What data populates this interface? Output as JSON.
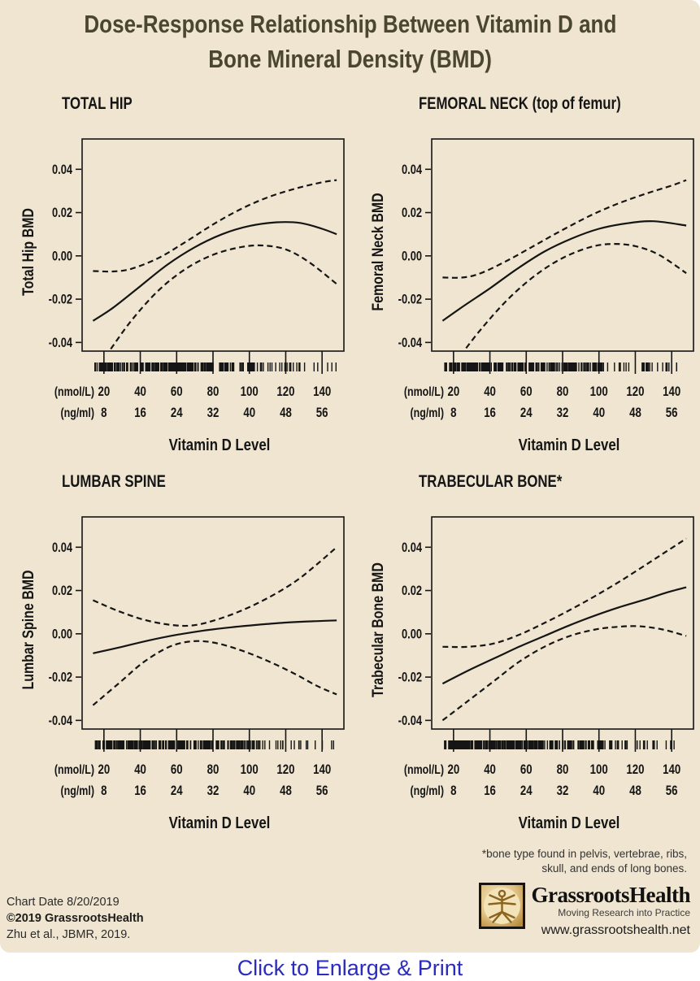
{
  "header": {
    "title_line1": "Dose-Response Relationship Between Vitamin D and",
    "title_line2": "Bone Mineral Density (BMD)"
  },
  "colors": {
    "card_bg": "#efe5d0",
    "title_text": "#4a4630",
    "chart_ink": "#151515",
    "link_blue": "#2b2bbd",
    "logo_gold_dark": "#b98c3c",
    "logo_gold_light": "#f3e3b8"
  },
  "chart_data": [
    {
      "type": "line",
      "title": "TOTAL HIP",
      "ylabel": "Total Hip BMD",
      "xlabel": "Vitamin D Level",
      "x_units": [
        "(nmol/L)",
        "(ng/ml)"
      ],
      "x_ticks_nmol": [
        20,
        40,
        60,
        80,
        100,
        120,
        140
      ],
      "x_ticks_ngml": [
        8,
        16,
        24,
        32,
        40,
        48,
        56
      ],
      "y_ticks": [
        "0.04",
        "0.02",
        "0.00",
        "-0.02",
        "-0.04"
      ],
      "xlim": [
        8,
        152
      ],
      "ylim": [
        -0.044,
        0.054
      ],
      "grid": false,
      "legend": "none",
      "rug": {
        "seed": 11,
        "n_dense": 240,
        "n_sparse": 26
      },
      "series": [
        {
          "name": "estimate",
          "style": "solid",
          "points": [
            [
              14,
              -0.03
            ],
            [
              25,
              -0.024
            ],
            [
              40,
              -0.014
            ],
            [
              55,
              -0.004
            ],
            [
              70,
              0.004
            ],
            [
              85,
              0.01
            ],
            [
              100,
              0.0138
            ],
            [
              115,
              0.0155
            ],
            [
              128,
              0.0152
            ],
            [
              140,
              0.0125
            ],
            [
              148,
              0.01
            ]
          ]
        },
        {
          "name": "upper-ci",
          "style": "dashed",
          "points": [
            [
              14,
              -0.007
            ],
            [
              25,
              -0.0072
            ],
            [
              35,
              -0.006
            ],
            [
              50,
              -0.001
            ],
            [
              65,
              0.0065
            ],
            [
              80,
              0.0145
            ],
            [
              95,
              0.0215
            ],
            [
              110,
              0.027
            ],
            [
              125,
              0.031
            ],
            [
              140,
              0.034
            ],
            [
              148,
              0.035
            ]
          ]
        },
        {
          "name": "lower-ci",
          "style": "dashed",
          "points": [
            [
              14,
              -0.053
            ],
            [
              22,
              -0.045
            ],
            [
              35,
              -0.03
            ],
            [
              50,
              -0.016
            ],
            [
              65,
              -0.006
            ],
            [
              80,
              0.0005
            ],
            [
              95,
              0.004
            ],
            [
              107,
              0.0048
            ],
            [
              120,
              0.003
            ],
            [
              133,
              -0.003
            ],
            [
              148,
              -0.013
            ]
          ]
        }
      ]
    },
    {
      "type": "line",
      "title": "FEMORAL NECK (top of femur)",
      "ylabel": "Femoral Neck BMD",
      "xlabel": "Vitamin D Level",
      "x_units": [
        "(nmol/L)",
        "(ng/ml)"
      ],
      "x_ticks_nmol": [
        20,
        40,
        60,
        80,
        100,
        120,
        140
      ],
      "x_ticks_ngml": [
        8,
        16,
        24,
        32,
        40,
        48,
        56
      ],
      "y_ticks": [
        "0.04",
        "0.02",
        "0.00",
        "-0.02",
        "-0.04"
      ],
      "xlim": [
        8,
        152
      ],
      "ylim": [
        -0.044,
        0.054
      ],
      "grid": false,
      "legend": "none",
      "rug": {
        "seed": 23,
        "n_dense": 240,
        "n_sparse": 26
      },
      "series": [
        {
          "name": "estimate",
          "style": "solid",
          "points": [
            [
              14,
              -0.03
            ],
            [
              25,
              -0.0235
            ],
            [
              40,
              -0.015
            ],
            [
              55,
              -0.006
            ],
            [
              70,
              0.002
            ],
            [
              85,
              0.008
            ],
            [
              100,
              0.0125
            ],
            [
              115,
              0.015
            ],
            [
              130,
              0.016
            ],
            [
              148,
              0.014
            ]
          ]
        },
        {
          "name": "upper-ci",
          "style": "dashed",
          "points": [
            [
              14,
              -0.01
            ],
            [
              25,
              -0.01
            ],
            [
              35,
              -0.008
            ],
            [
              50,
              -0.002
            ],
            [
              65,
              0.005
            ],
            [
              80,
              0.012
            ],
            [
              95,
              0.0185
            ],
            [
              110,
              0.024
            ],
            [
              125,
              0.0285
            ],
            [
              140,
              0.0325
            ],
            [
              148,
              0.035
            ]
          ]
        },
        {
          "name": "lower-ci",
          "style": "dashed",
          "points": [
            [
              14,
              -0.056
            ],
            [
              22,
              -0.048
            ],
            [
              35,
              -0.034
            ],
            [
              50,
              -0.02
            ],
            [
              65,
              -0.009
            ],
            [
              80,
              -0.001
            ],
            [
              95,
              0.004
            ],
            [
              107,
              0.0055
            ],
            [
              120,
              0.0045
            ],
            [
              133,
              0.0005
            ],
            [
              148,
              -0.008
            ]
          ]
        }
      ]
    },
    {
      "type": "line",
      "title": "LUMBAR SPINE",
      "ylabel": "Lumbar Spine BMD",
      "xlabel": "Vitamin D Level",
      "x_units": [
        "(nmol/L)",
        "(ng/ml)"
      ],
      "x_ticks_nmol": [
        20,
        40,
        60,
        80,
        100,
        120,
        140
      ],
      "x_ticks_ngml": [
        8,
        16,
        24,
        32,
        40,
        48,
        56
      ],
      "y_ticks": [
        "0.04",
        "0.02",
        "0.00",
        "-0.02",
        "-0.04"
      ],
      "xlim": [
        8,
        152
      ],
      "ylim": [
        -0.044,
        0.054
      ],
      "grid": false,
      "legend": "none",
      "rug": {
        "seed": 37,
        "n_dense": 240,
        "n_sparse": 26
      },
      "series": [
        {
          "name": "estimate",
          "style": "solid",
          "points": [
            [
              14,
              -0.009
            ],
            [
              30,
              -0.006
            ],
            [
              45,
              -0.003
            ],
            [
              60,
              -0.0005
            ],
            [
              75,
              0.0015
            ],
            [
              90,
              0.003
            ],
            [
              105,
              0.0042
            ],
            [
              120,
              0.0052
            ],
            [
              135,
              0.0058
            ],
            [
              148,
              0.0062
            ]
          ]
        },
        {
          "name": "upper-ci",
          "style": "dashed",
          "points": [
            [
              14,
              0.0155
            ],
            [
              28,
              0.0105
            ],
            [
              42,
              0.0065
            ],
            [
              56,
              0.0042
            ],
            [
              68,
              0.0038
            ],
            [
              80,
              0.006
            ],
            [
              95,
              0.0105
            ],
            [
              110,
              0.0165
            ],
            [
              125,
              0.024
            ],
            [
              137,
              0.032
            ],
            [
              148,
              0.04
            ]
          ]
        },
        {
          "name": "lower-ci",
          "style": "dashed",
          "points": [
            [
              14,
              -0.033
            ],
            [
              28,
              -0.023
            ],
            [
              42,
              -0.013
            ],
            [
              56,
              -0.006
            ],
            [
              68,
              -0.0035
            ],
            [
              80,
              -0.004
            ],
            [
              95,
              -0.0075
            ],
            [
              110,
              -0.0125
            ],
            [
              125,
              -0.0185
            ],
            [
              137,
              -0.024
            ],
            [
              148,
              -0.028
            ]
          ]
        }
      ]
    },
    {
      "type": "line",
      "title": "TRABECULAR BONE*",
      "ylabel": "Trabecular Bone BMD",
      "xlabel": "Vitamin D Level",
      "x_units": [
        "(nmol/L)",
        "(ng/ml)"
      ],
      "x_ticks_nmol": [
        20,
        40,
        60,
        80,
        100,
        120,
        140
      ],
      "x_ticks_ngml": [
        8,
        16,
        24,
        32,
        40,
        48,
        56
      ],
      "y_ticks": [
        "0.04",
        "0.02",
        "0.00",
        "-0.02",
        "-0.04"
      ],
      "xlim": [
        8,
        152
      ],
      "ylim": [
        -0.044,
        0.054
      ],
      "grid": false,
      "legend": "none",
      "rug": {
        "seed": 51,
        "n_dense": 240,
        "n_sparse": 26
      },
      "series": [
        {
          "name": "estimate",
          "style": "solid",
          "points": [
            [
              14,
              -0.023
            ],
            [
              28,
              -0.017
            ],
            [
              42,
              -0.0115
            ],
            [
              56,
              -0.006
            ],
            [
              70,
              -0.001
            ],
            [
              84,
              0.004
            ],
            [
              98,
              0.0085
            ],
            [
              112,
              0.0125
            ],
            [
              126,
              0.016
            ],
            [
              137,
              0.019
            ],
            [
              148,
              0.0215
            ]
          ]
        },
        {
          "name": "upper-ci",
          "style": "dashed",
          "points": [
            [
              14,
              -0.006
            ],
            [
              28,
              -0.006
            ],
            [
              42,
              -0.0045
            ],
            [
              56,
              -0.0005
            ],
            [
              70,
              0.005
            ],
            [
              84,
              0.011
            ],
            [
              98,
              0.0175
            ],
            [
              112,
              0.0245
            ],
            [
              126,
              0.032
            ],
            [
              137,
              0.038
            ],
            [
              148,
              0.044
            ]
          ]
        },
        {
          "name": "lower-ci",
          "style": "dashed",
          "points": [
            [
              14,
              -0.04
            ],
            [
              28,
              -0.031
            ],
            [
              42,
              -0.022
            ],
            [
              56,
              -0.013
            ],
            [
              70,
              -0.006
            ],
            [
              84,
              -0.001
            ],
            [
              98,
              0.002
            ],
            [
              110,
              0.0032
            ],
            [
              122,
              0.0035
            ],
            [
              135,
              0.002
            ],
            [
              148,
              -0.001
            ]
          ]
        }
      ]
    }
  ],
  "footer": {
    "chart_date": "Chart Date 8/20/2019",
    "copyright": "©2019 GrassrootsHealth",
    "citation": "Zhu et al., JBMR, 2019.",
    "note_line1": "*bone type found in pelvis, vertebrae, ribs,",
    "note_line2": "skull, and ends of long bones.",
    "logo": {
      "name": "GrassrootsHealth",
      "tagline": "Moving Research into Practice",
      "website": "www.grassrootshealth.net"
    },
    "enlarge_link": "Click to Enlarge & Print"
  }
}
